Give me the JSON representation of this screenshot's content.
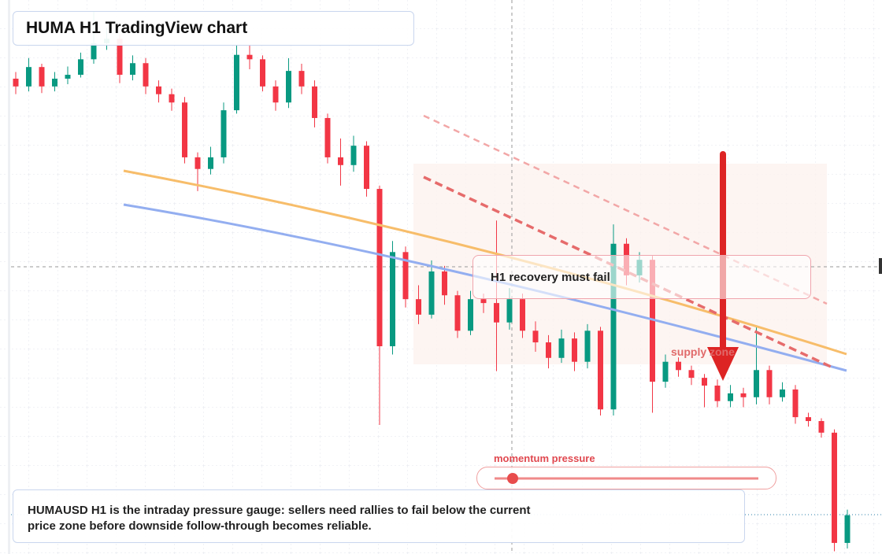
{
  "header": {
    "title": "HUMA H1 TradingView chart"
  },
  "chart_data": {
    "type": "candlestick",
    "ylim": [
      0,
      100
    ],
    "up_color": "#089981",
    "down_color": "#f23645",
    "open": [
      85.8,
      84.4,
      87.9,
      84.4,
      85.8,
      86.5,
      89.3,
      92.2,
      93.0,
      86.5,
      88.6,
      84.4,
      83.0,
      81.5,
      71.6,
      69.5,
      71.6,
      80.1,
      90.1,
      89.3,
      84.4,
      81.5,
      87.2,
      84.4,
      78.7,
      71.6,
      70.2,
      73.7,
      65.9,
      37.5,
      54.5,
      46.0,
      43.2,
      51.0,
      46.7,
      40.3,
      46.0,
      45.3,
      41.8,
      46.0,
      40.3,
      38.2,
      35.4,
      38.9,
      34.7,
      40.3,
      26.1,
      56.0,
      50.3,
      53.1,
      31.1,
      34.7,
      33.2,
      31.8,
      30.4,
      27.6,
      29.0,
      28.3,
      33.2,
      28.3,
      29.7,
      24.7,
      24.0,
      21.9,
      2.0
    ],
    "high": [
      87.0,
      89.5,
      88.5,
      87.0,
      88.0,
      90.5,
      98.0,
      95.0,
      93.8,
      90.0,
      89.5,
      85.5,
      84.0,
      82.5,
      72.5,
      73.5,
      81.5,
      92.0,
      92.0,
      90.0,
      85.5,
      89.5,
      88.5,
      85.5,
      79.5,
      75.0,
      75.5,
      74.5,
      66.5,
      56.5,
      55.5,
      48.5,
      53.0,
      52.0,
      47.5,
      47.5,
      47.0,
      60.2,
      48.0,
      47.0,
      42.0,
      39.5,
      40.5,
      40.0,
      41.5,
      41.0,
      59.5,
      57.0,
      54.5,
      53.8,
      36.0,
      35.5,
      34.0,
      32.5,
      31.5,
      30.5,
      30.0,
      41.0,
      34.0,
      31.0,
      30.5,
      25.5,
      24.5,
      22.5,
      8.0
    ],
    "low": [
      83.0,
      83.5,
      83.2,
      83.5,
      84.8,
      86.0,
      88.5,
      91.0,
      85.0,
      85.5,
      83.0,
      81.5,
      80.0,
      70.5,
      65.5,
      68.5,
      70.5,
      79.5,
      87.5,
      83.5,
      80.0,
      80.5,
      83.0,
      77.0,
      70.5,
      66.5,
      69.0,
      64.5,
      23.3,
      36.0,
      44.5,
      41.5,
      42.5,
      45.0,
      39.0,
      39.5,
      43.5,
      33.0,
      40.5,
      39.0,
      36.5,
      33.5,
      34.5,
      33.0,
      33.5,
      25.0,
      25.0,
      48.5,
      49.0,
      25.5,
      30.0,
      32.0,
      30.5,
      26.5,
      26.5,
      26.5,
      26.5,
      27.0,
      27.0,
      27.5,
      23.5,
      23.0,
      21.0,
      0.5,
      1.0
    ],
    "close": [
      84.4,
      87.9,
      84.4,
      85.8,
      86.5,
      89.3,
      92.2,
      93.0,
      86.5,
      88.6,
      84.4,
      83.0,
      81.5,
      71.6,
      69.5,
      71.6,
      80.1,
      90.1,
      89.3,
      84.4,
      81.5,
      87.2,
      84.4,
      78.7,
      71.6,
      70.2,
      73.7,
      65.9,
      37.5,
      54.5,
      46.0,
      43.2,
      51.0,
      46.7,
      40.3,
      46.0,
      45.3,
      41.8,
      46.0,
      40.3,
      38.2,
      35.4,
      38.9,
      34.7,
      40.3,
      26.1,
      56.0,
      50.3,
      53.1,
      31.1,
      34.7,
      33.2,
      31.8,
      30.4,
      27.6,
      29.0,
      28.3,
      33.2,
      28.3,
      29.7,
      24.7,
      24.0,
      21.9,
      2.0,
      7.0
    ]
  },
  "annotations": {
    "note": "H1 recovery must fail",
    "zone_label": "supply zone",
    "gauge_label": "momentum pressure"
  },
  "caption": {
    "lines": [
      "HUMAUSD H1 is the intraday pressure gauge: sellers need rallies to fail below the current",
      "price zone before downside follow-through becomes reliable."
    ]
  }
}
